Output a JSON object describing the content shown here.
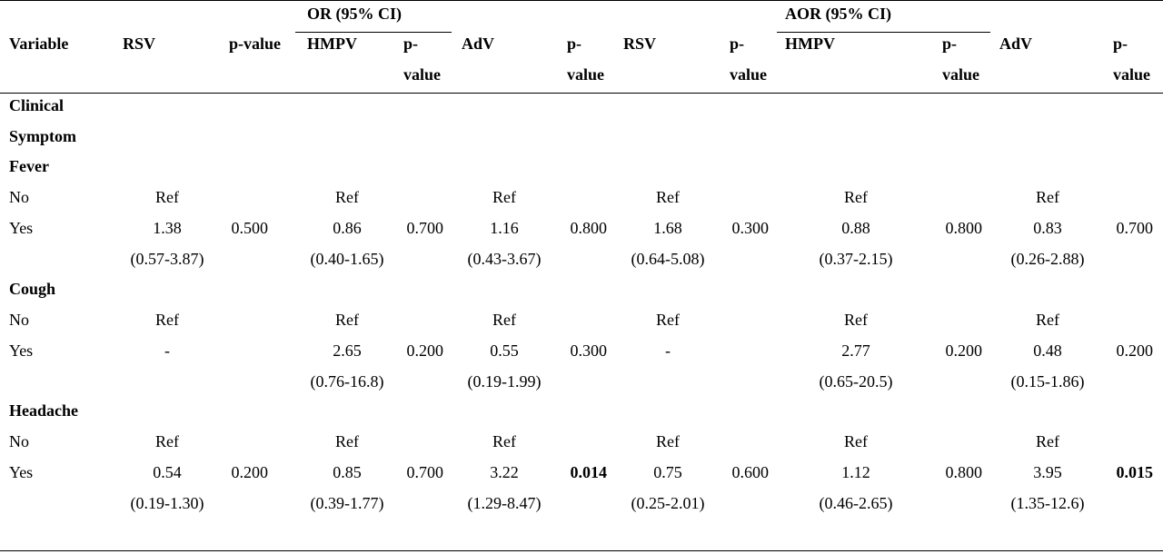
{
  "header": {
    "group_or": "OR (95% CI)",
    "group_aor": "AOR (95% CI)",
    "variable": "Variable",
    "rsv": "RSV",
    "pvalue": "p-value",
    "hmpv": "HMPV",
    "p_dash": "p-",
    "value": "value",
    "adv": "AdV"
  },
  "sections": {
    "clinical": "Clinical",
    "symptom": "Symptom",
    "fever": "Fever",
    "cough": "Cough",
    "headache": "Headache"
  },
  "labels": {
    "no": "No",
    "yes": "Yes",
    "ref": "Ref"
  },
  "fever_yes": {
    "or_rsv": "1.38",
    "or_rsv_ci": "(0.57-3.87)",
    "or_rsv_p": "0.500",
    "or_hmpv": "0.86",
    "or_hmpv_ci": "(0.40-1.65)",
    "or_hmpv_p": "0.700",
    "or_adv": "1.16",
    "or_adv_ci": "(0.43-3.67)",
    "or_adv_p": "0.800",
    "aor_rsv": "1.68",
    "aor_rsv_ci": "(0.64-5.08)",
    "aor_rsv_p": "0.300",
    "aor_hmpv": "0.88",
    "aor_hmpv_ci": "(0.37-2.15)",
    "aor_hmpv_p": "0.800",
    "aor_adv": "0.83",
    "aor_adv_ci": "(0.26-2.88)",
    "aor_adv_p": "0.700"
  },
  "cough_yes": {
    "or_rsv": "-",
    "or_hmpv": "2.65",
    "or_hmpv_ci": "(0.76-16.8)",
    "or_hmpv_p": "0.200",
    "or_adv": "0.55",
    "or_adv_ci": "(0.19-1.99)",
    "or_adv_p": "0.300",
    "aor_rsv": "-",
    "aor_hmpv": "2.77",
    "aor_hmpv_ci": "(0.65-20.5)",
    "aor_hmpv_p": "0.200",
    "aor_adv": "0.48",
    "aor_adv_ci": "(0.15-1.86)",
    "aor_adv_p": "0.200"
  },
  "headache_yes": {
    "or_rsv": "0.54",
    "or_rsv_ci": "(0.19-1.30)",
    "or_rsv_p": "0.200",
    "or_hmpv": "0.85",
    "or_hmpv_ci": "(0.39-1.77)",
    "or_hmpv_p": "0.700",
    "or_adv": "3.22",
    "or_adv_ci": "(1.29-8.47)",
    "or_adv_p": "0.014",
    "aor_rsv": "0.75",
    "aor_rsv_ci": "(0.25-2.01)",
    "aor_rsv_p": "0.600",
    "aor_hmpv": "1.12",
    "aor_hmpv_ci": "(0.46-2.65)",
    "aor_hmpv_p": "0.800",
    "aor_adv": "3.95",
    "aor_adv_ci": "(1.35-12.6)",
    "aor_adv_p": "0.015"
  }
}
